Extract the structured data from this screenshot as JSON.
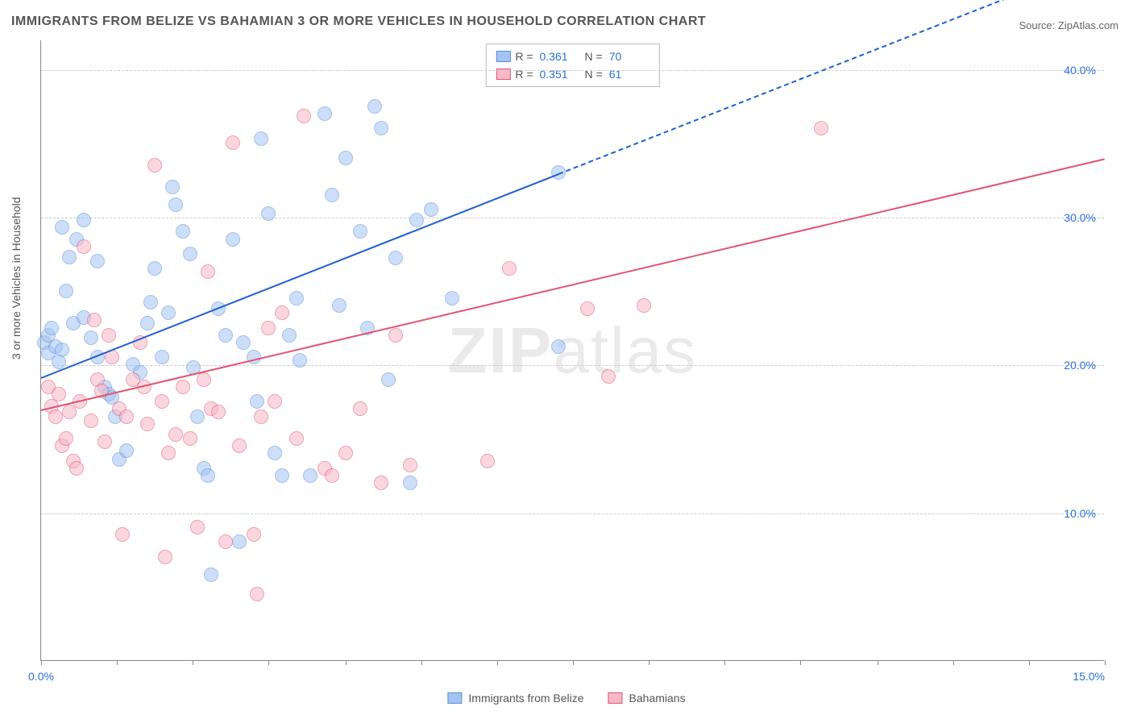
{
  "title": "IMMIGRANTS FROM BELIZE VS BAHAMIAN 3 OR MORE VEHICLES IN HOUSEHOLD CORRELATION CHART",
  "source": "Source: ZipAtlas.com",
  "watermark": "ZIPatlas",
  "ylabel": "3 or more Vehicles in Household",
  "chart": {
    "type": "scatter",
    "xlim": [
      0,
      15
    ],
    "ylim": [
      0,
      42
    ],
    "x_ticks": [
      {
        "v": 0,
        "label": "0.0%"
      },
      {
        "v": 15,
        "label": "15.0%"
      }
    ],
    "x_minor_ticks": [
      0,
      1.07,
      2.14,
      3.21,
      4.29,
      5.36,
      6.43,
      7.5,
      8.57,
      9.64,
      10.71,
      11.79,
      12.86,
      13.93,
      15
    ],
    "y_ticks": [
      {
        "v": 10,
        "label": "10.0%"
      },
      {
        "v": 20,
        "label": "20.0%"
      },
      {
        "v": 30,
        "label": "30.0%"
      },
      {
        "v": 40,
        "label": "40.0%"
      }
    ],
    "background_color": "#ffffff",
    "grid_color": "#cccccc",
    "point_radius": 9,
    "point_opacity": 0.55,
    "series": [
      {
        "name": "Immigrants from Belize",
        "color_fill": "#a3c4f3",
        "color_stroke": "#5b8fd6",
        "trend_color": "#1f5fd0",
        "r": "0.361",
        "n": "70",
        "trend": {
          "x1": 0,
          "y1": 19.2,
          "x2": 7.3,
          "y2": 33.0,
          "x2_dash": 15,
          "y2_dash": 47.5
        },
        "points": [
          [
            0.05,
            21.5
          ],
          [
            0.1,
            22.0
          ],
          [
            0.1,
            20.8
          ],
          [
            0.2,
            21.2
          ],
          [
            0.15,
            22.5
          ],
          [
            0.3,
            21.0
          ],
          [
            0.25,
            20.2
          ],
          [
            0.3,
            29.3
          ],
          [
            0.6,
            29.8
          ],
          [
            0.5,
            28.5
          ],
          [
            0.8,
            27.0
          ],
          [
            0.4,
            27.3
          ],
          [
            0.35,
            25.0
          ],
          [
            0.45,
            22.8
          ],
          [
            0.6,
            23.2
          ],
          [
            0.7,
            21.8
          ],
          [
            0.8,
            20.5
          ],
          [
            0.9,
            18.5
          ],
          [
            0.95,
            18.0
          ],
          [
            1.0,
            17.8
          ],
          [
            1.05,
            16.5
          ],
          [
            1.1,
            13.6
          ],
          [
            1.2,
            14.2
          ],
          [
            1.3,
            20.0
          ],
          [
            1.4,
            19.5
          ],
          [
            1.5,
            22.8
          ],
          [
            1.55,
            24.2
          ],
          [
            1.6,
            26.5
          ],
          [
            1.7,
            20.5
          ],
          [
            1.8,
            23.5
          ],
          [
            1.85,
            32.0
          ],
          [
            1.9,
            30.8
          ],
          [
            2.0,
            29.0
          ],
          [
            2.1,
            27.5
          ],
          [
            2.15,
            19.8
          ],
          [
            2.2,
            16.5
          ],
          [
            2.3,
            13.0
          ],
          [
            2.35,
            12.5
          ],
          [
            2.4,
            5.8
          ],
          [
            2.5,
            23.8
          ],
          [
            2.6,
            22.0
          ],
          [
            2.7,
            28.5
          ],
          [
            2.8,
            8.0
          ],
          [
            2.85,
            21.5
          ],
          [
            3.0,
            20.5
          ],
          [
            3.05,
            17.5
          ],
          [
            3.1,
            35.3
          ],
          [
            3.2,
            30.2
          ],
          [
            3.3,
            14.0
          ],
          [
            3.4,
            12.5
          ],
          [
            3.5,
            22.0
          ],
          [
            3.6,
            24.5
          ],
          [
            3.65,
            20.3
          ],
          [
            3.8,
            12.5
          ],
          [
            4.0,
            37.0
          ],
          [
            4.1,
            31.5
          ],
          [
            4.2,
            24.0
          ],
          [
            4.3,
            34.0
          ],
          [
            4.5,
            29.0
          ],
          [
            4.6,
            22.5
          ],
          [
            4.7,
            37.5
          ],
          [
            4.8,
            36.0
          ],
          [
            4.9,
            19.0
          ],
          [
            5.0,
            27.2
          ],
          [
            5.2,
            12.0
          ],
          [
            5.3,
            29.8
          ],
          [
            5.5,
            30.5
          ],
          [
            5.8,
            24.5
          ],
          [
            7.3,
            21.2
          ],
          [
            7.3,
            33.0
          ]
        ]
      },
      {
        "name": "Bahamians",
        "color_fill": "#f7b8c8",
        "color_stroke": "#e2546f",
        "trend_color": "#e2546f",
        "r": "0.351",
        "n": "61",
        "trend": {
          "x1": 0,
          "y1": 17.0,
          "x2": 15,
          "y2": 34.0
        },
        "points": [
          [
            0.1,
            18.5
          ],
          [
            0.15,
            17.2
          ],
          [
            0.2,
            16.5
          ],
          [
            0.25,
            18.0
          ],
          [
            0.3,
            14.5
          ],
          [
            0.35,
            15.0
          ],
          [
            0.4,
            16.8
          ],
          [
            0.45,
            13.5
          ],
          [
            0.5,
            13.0
          ],
          [
            0.55,
            17.5
          ],
          [
            0.6,
            28.0
          ],
          [
            0.7,
            16.2
          ],
          [
            0.75,
            23.0
          ],
          [
            0.8,
            19.0
          ],
          [
            0.85,
            18.2
          ],
          [
            0.9,
            14.8
          ],
          [
            0.95,
            22.0
          ],
          [
            1.0,
            20.5
          ],
          [
            1.1,
            17.0
          ],
          [
            1.15,
            8.5
          ],
          [
            1.2,
            16.5
          ],
          [
            1.3,
            19.0
          ],
          [
            1.4,
            21.5
          ],
          [
            1.45,
            18.5
          ],
          [
            1.5,
            16.0
          ],
          [
            1.6,
            33.5
          ],
          [
            1.7,
            17.5
          ],
          [
            1.75,
            7.0
          ],
          [
            1.8,
            14.0
          ],
          [
            1.9,
            15.3
          ],
          [
            2.0,
            18.5
          ],
          [
            2.1,
            15.0
          ],
          [
            2.2,
            9.0
          ],
          [
            2.3,
            19.0
          ],
          [
            2.35,
            26.3
          ],
          [
            2.4,
            17.0
          ],
          [
            2.5,
            16.8
          ],
          [
            2.6,
            8.0
          ],
          [
            2.7,
            35.0
          ],
          [
            2.8,
            14.5
          ],
          [
            3.0,
            8.5
          ],
          [
            3.05,
            4.5
          ],
          [
            3.1,
            16.5
          ],
          [
            3.2,
            22.5
          ],
          [
            3.3,
            17.5
          ],
          [
            3.4,
            23.5
          ],
          [
            3.6,
            15.0
          ],
          [
            3.7,
            36.8
          ],
          [
            4.0,
            13.0
          ],
          [
            4.1,
            12.5
          ],
          [
            4.3,
            14.0
          ],
          [
            4.5,
            17.0
          ],
          [
            4.8,
            12.0
          ],
          [
            5.0,
            22.0
          ],
          [
            5.2,
            13.2
          ],
          [
            6.3,
            13.5
          ],
          [
            6.6,
            26.5
          ],
          [
            7.7,
            23.8
          ],
          [
            8.0,
            19.2
          ],
          [
            8.5,
            24.0
          ],
          [
            11.0,
            36.0
          ]
        ]
      }
    ]
  },
  "legend_bottom": [
    {
      "label": "Immigrants from Belize",
      "fill": "#a3c4f3",
      "stroke": "#5b8fd6"
    },
    {
      "label": "Bahamians",
      "fill": "#f7b8c8",
      "stroke": "#e2546f"
    }
  ]
}
